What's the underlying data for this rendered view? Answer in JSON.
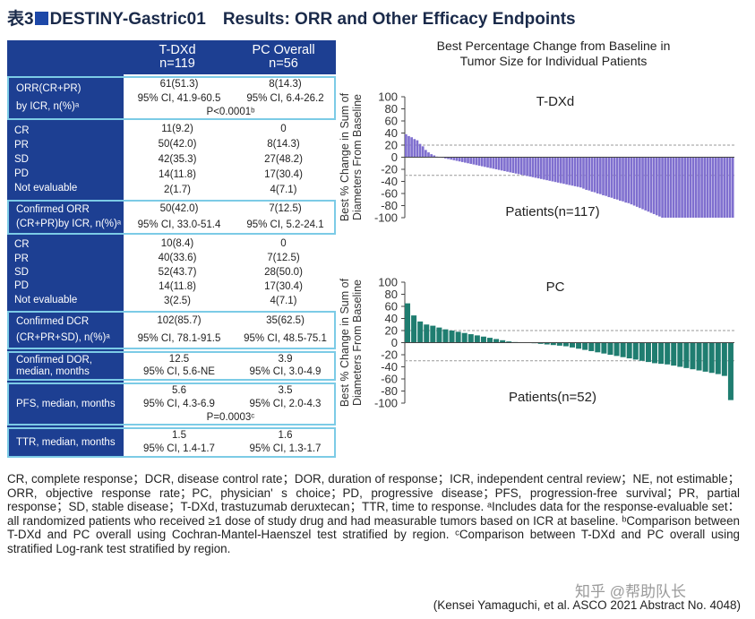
{
  "header": {
    "label": "表3",
    "title": "DESTINY-Gastric01　Results: ORR and Other Efficacy Endpoints"
  },
  "table": {
    "columns": [
      [
        "T-DXd",
        "n=119"
      ],
      [
        "PC Overall",
        "n=56"
      ]
    ],
    "rows": [
      {
        "label": [
          "ORR(CR+PR)",
          "by ICR, n(%)ᵃ"
        ],
        "cells": [
          [
            "61(51.3)",
            "95% CI, 41.9-60.5"
          ],
          [
            "8(14.3)",
            "95% CI, 6.4-26.2"
          ]
        ],
        "p": "P<0.0001ᵇ",
        "boxed": true
      },
      {
        "label": [
          "CR",
          "PR",
          "SD",
          "PD",
          "Not evaluable"
        ],
        "cells": [
          [
            "11(9.2)",
            "50(42.0)",
            "42(35.3)",
            "14(11.8)",
            "2(1.7)"
          ],
          [
            "0",
            "8(14.3)",
            "27(48.2)",
            "17(30.4)",
            "4(7.1)"
          ]
        ],
        "boxed": false
      },
      {
        "label": [
          "Confirmed ORR",
          "(CR+PR)by ICR, n(%)ᵃ"
        ],
        "cells": [
          [
            "50(42.0)",
            "95% CI, 33.0-51.4"
          ],
          [
            "7(12.5)",
            "95% CI, 5.2-24.1"
          ]
        ],
        "boxed": true
      },
      {
        "label": [
          "CR",
          "PR",
          "SD",
          "PD",
          "Not evaluable"
        ],
        "cells": [
          [
            "10(8.4)",
            "40(33.6)",
            "52(43.7)",
            "14(11.8)",
            "3(2.5)"
          ],
          [
            "0",
            "7(12.5)",
            "28(50.0)",
            "17(30.4)",
            "4(7.1)"
          ]
        ],
        "boxed": false
      },
      {
        "label": [
          "Confirmed DCR",
          "(CR+PR+SD), n(%)ᵃ"
        ],
        "cells": [
          [
            "102(85.7)",
            "95% CI, 78.1-91.5"
          ],
          [
            "35(62.5)",
            "95% CI, 48.5-75.1"
          ]
        ],
        "boxed": true
      },
      {
        "label": [
          "Confirmed DOR,",
          "median, months"
        ],
        "cells": [
          [
            "12.5",
            "95% CI, 5.6-NE"
          ],
          [
            "3.9",
            "95% CI, 3.0-4.9"
          ]
        ],
        "boxed": true
      },
      {
        "label": [
          "PFS, median, months"
        ],
        "cells": [
          [
            "5.6",
            "95% CI, 4.3-6.9"
          ],
          [
            "3.5",
            "95% CI, 2.0-4.3"
          ]
        ],
        "p": "P=0.0003ᶜ",
        "boxed": true
      },
      {
        "label": [
          "TTR, median, months"
        ],
        "cells": [
          [
            "1.5",
            "95% CI, 1.4-1.7"
          ],
          [
            "1.6",
            "95% CI, 1.3-1.7"
          ]
        ],
        "boxed": true
      }
    ]
  },
  "figure_title": [
    "Best Percentage Change from Baseline in",
    "Tumor Size for Individual Patients"
  ],
  "chart_data": [
    {
      "type": "bar",
      "label": "T-DXd",
      "annotation": "Patients(n=117)",
      "y_label": [
        "Best % Change in Sum of",
        "Diameters From Baseline"
      ],
      "ylim": [
        -100,
        100
      ],
      "yticks": [
        100,
        80,
        60,
        40,
        20,
        0,
        -20,
        -40,
        -60,
        -80,
        -100
      ],
      "ref_lines": [
        20,
        -30
      ],
      "color": "#7f6fcf",
      "values": [
        38,
        35,
        33,
        30,
        28,
        22,
        18,
        12,
        8,
        5,
        3,
        1,
        0,
        -1,
        -2,
        -3,
        -4,
        -5,
        -6,
        -7,
        -8,
        -9,
        -10,
        -11,
        -12,
        -13,
        -14,
        -15,
        -16,
        -17,
        -18,
        -19,
        -20,
        -21,
        -22,
        -23,
        -24,
        -25,
        -26,
        -27,
        -28,
        -29,
        -30,
        -31,
        -32,
        -33,
        -34,
        -35,
        -36,
        -37,
        -38,
        -39,
        -40,
        -41,
        -42,
        -43,
        -44,
        -45,
        -46,
        -47,
        -48,
        -49,
        -50,
        -52,
        -54,
        -55,
        -57,
        -58,
        -60,
        -61,
        -63,
        -64,
        -66,
        -67,
        -69,
        -70,
        -72,
        -73,
        -75,
        -76,
        -78,
        -80,
        -82,
        -84,
        -86,
        -88,
        -90,
        -92,
        -94,
        -96,
        -98,
        -100,
        -100,
        -100,
        -100,
        -100,
        -100,
        -100,
        -100,
        -100,
        -100,
        -100,
        -100,
        -100,
        -100,
        -100,
        -100,
        -100,
        -100,
        -100,
        -100,
        -100,
        -100,
        -100,
        -100,
        -100,
        -100
      ]
    },
    {
      "type": "bar",
      "label": "PC",
      "annotation": "Patients(n=52)",
      "y_label": [
        "Best % Change in Sum of",
        "Diameters From Baseline"
      ],
      "ylim": [
        -100,
        100
      ],
      "yticks": [
        100,
        80,
        60,
        40,
        20,
        0,
        -20,
        -40,
        -60,
        -80,
        -100
      ],
      "ref_lines": [
        20,
        -30
      ],
      "color": "#1f7d70",
      "values": [
        65,
        45,
        35,
        30,
        28,
        25,
        22,
        20,
        18,
        16,
        14,
        12,
        10,
        8,
        6,
        4,
        2,
        1,
        0,
        0,
        -1,
        -2,
        -3,
        -4,
        -5,
        -6,
        -8,
        -10,
        -12,
        -14,
        -16,
        -18,
        -20,
        -22,
        -24,
        -26,
        -28,
        -30,
        -32,
        -34,
        -35,
        -36,
        -38,
        -40,
        -42,
        -44,
        -46,
        -48,
        -50,
        -52,
        -55,
        -95
      ]
    }
  ],
  "footnote": "CR, complete response；DCR, disease control rate；DOR, duration of response；ICR, independent central review；NE, not estimable；ORR, objective response rate；PC, physician' s choice；PD, progressive disease；PFS, progression-free survival；PR, partial response；SD, stable disease；T-DXd, trastuzumab deruxtecan；TTR, time to response. ᵃIncludes data for the response-evaluable set：all randomized patients who received ≥1 dose of study drug and had measurable tumors based on ICR at baseline. ᵇComparison between T-DXd and PC overall using Cochran-Mantel-Haenszel test stratified by region. ᶜComparison between T-DXd and PC overall using stratified Log-rank test stratified by region.",
  "citation": "(Kensei Yamaguchi, et al. ASCO 2021  Abstract No. 4048)",
  "watermark": "知乎 @帮助队长"
}
